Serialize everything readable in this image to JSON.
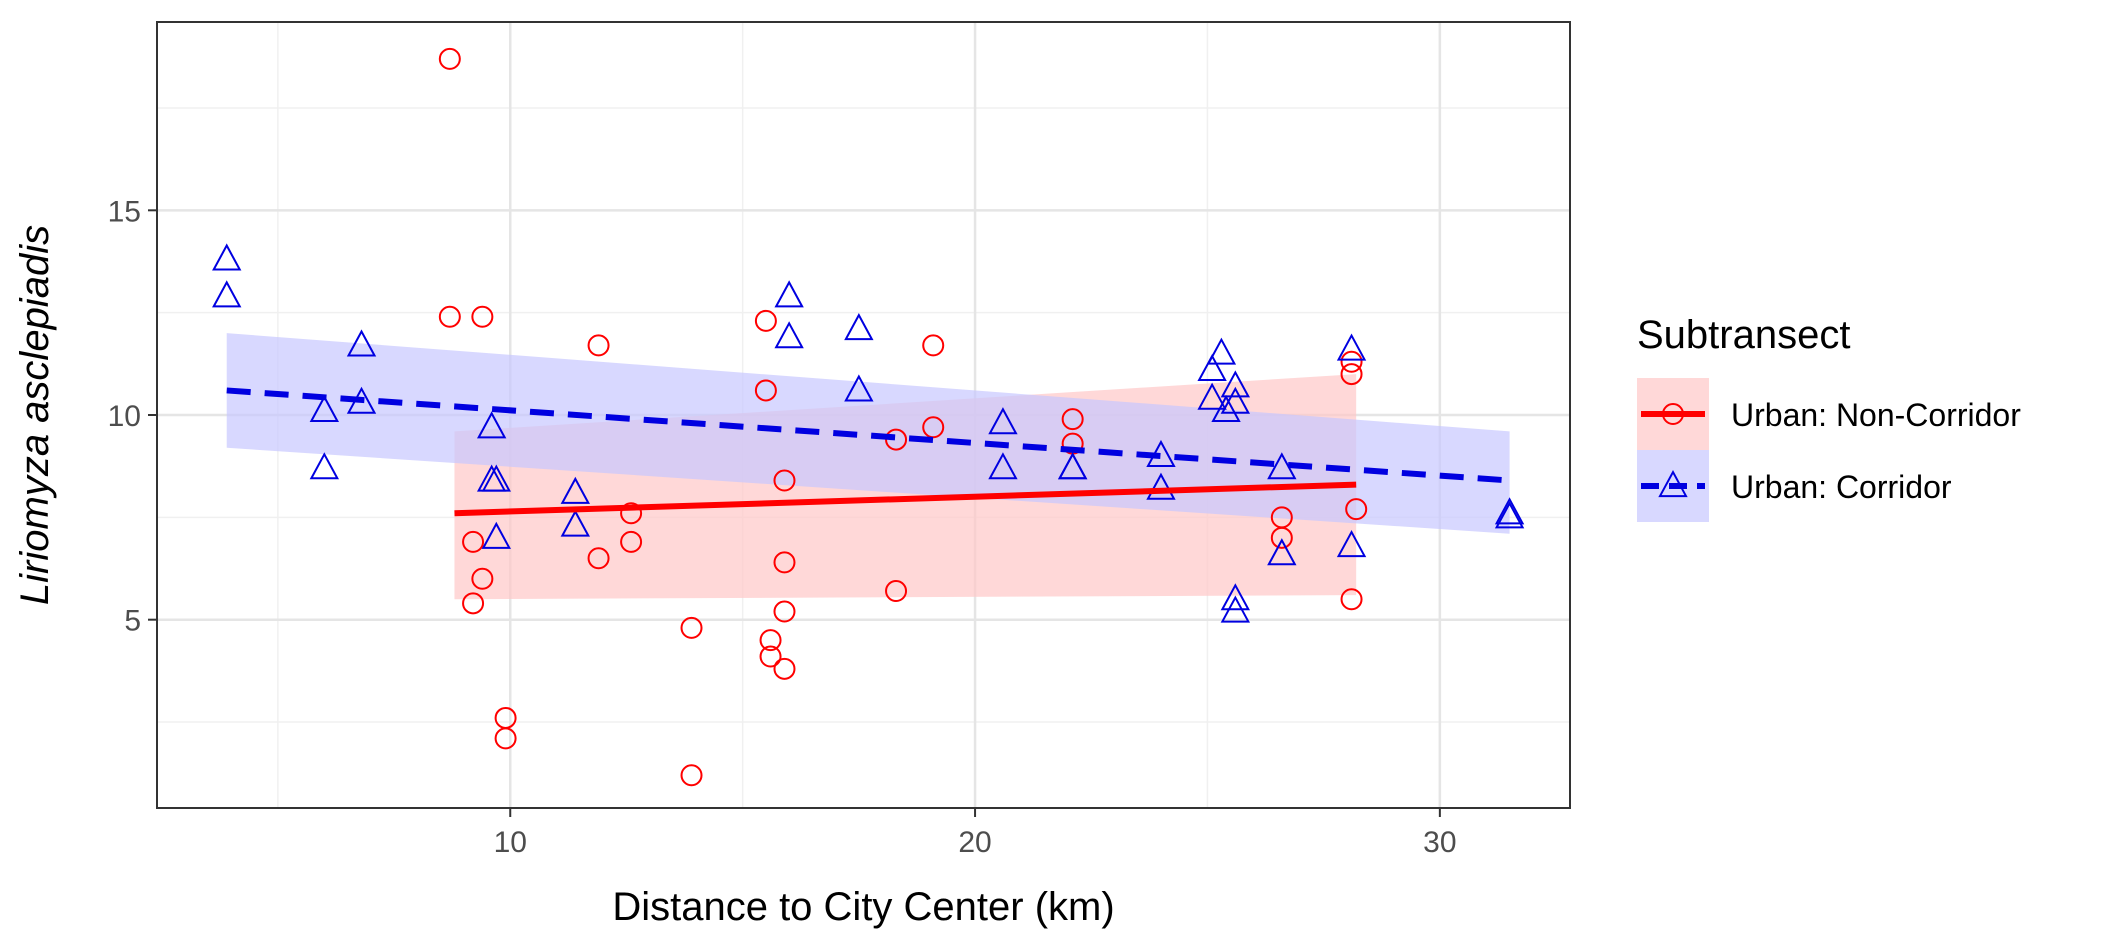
{
  "chart_data": {
    "type": "scatter",
    "xlabel": "Distance to City Center (km)",
    "ylabel": "Liriomyza asclepiadis",
    "xlim": [
      2.4,
      32.8
    ],
    "ylim": [
      0.4,
      19.6
    ],
    "x_ticks": [
      10,
      20,
      30
    ],
    "y_ticks": [
      5,
      10,
      15
    ],
    "grid": true,
    "legend": {
      "title": "Subtransect",
      "placement": "right"
    },
    "series": [
      {
        "name": "Urban: Non-Corridor",
        "marker": "circle",
        "line_style": "solid",
        "color": "#ff0000",
        "band_color": "#ffc8c8",
        "points": [
          [
            8.7,
            18.7
          ],
          [
            8.7,
            12.4
          ],
          [
            9.4,
            12.4
          ],
          [
            9.2,
            6.9
          ],
          [
            9.4,
            6.0
          ],
          [
            9.2,
            5.4
          ],
          [
            9.9,
            2.6
          ],
          [
            9.9,
            2.1
          ],
          [
            11.9,
            11.7
          ],
          [
            11.9,
            6.5
          ],
          [
            12.6,
            7.6
          ],
          [
            12.6,
            6.9
          ],
          [
            13.9,
            4.8
          ],
          [
            13.9,
            1.2
          ],
          [
            15.5,
            12.3
          ],
          [
            15.5,
            10.6
          ],
          [
            15.6,
            4.5
          ],
          [
            15.6,
            4.1
          ],
          [
            15.9,
            8.4
          ],
          [
            15.9,
            6.4
          ],
          [
            15.9,
            5.2
          ],
          [
            15.9,
            3.8
          ],
          [
            18.3,
            9.4
          ],
          [
            18.3,
            5.7
          ],
          [
            19.1,
            11.7
          ],
          [
            19.1,
            9.7
          ],
          [
            22.1,
            9.9
          ],
          [
            22.1,
            9.3
          ],
          [
            26.6,
            7.5
          ],
          [
            26.6,
            7.0
          ],
          [
            28.1,
            11.3
          ],
          [
            28.1,
            11.0
          ],
          [
            28.2,
            7.7
          ],
          [
            28.1,
            5.5
          ]
        ],
        "fit": {
          "x": [
            8.8,
            28.2
          ],
          "y": [
            7.6,
            8.3
          ]
        },
        "band": {
          "x": [
            8.8,
            28.2
          ],
          "lower": [
            5.5,
            5.6
          ],
          "upper": [
            9.6,
            11.0
          ]
        }
      },
      {
        "name": "Urban: Corridor",
        "marker": "triangle",
        "line_style": "dashed",
        "color": "#0000e0",
        "band_color": "#c8c8ff",
        "points": [
          [
            3.9,
            13.8
          ],
          [
            3.9,
            12.9
          ],
          [
            6.0,
            10.1
          ],
          [
            6.0,
            8.7
          ],
          [
            6.8,
            11.7
          ],
          [
            6.8,
            10.3
          ],
          [
            9.6,
            9.7
          ],
          [
            9.6,
            8.4
          ],
          [
            9.7,
            8.4
          ],
          [
            9.7,
            7.0
          ],
          [
            11.4,
            8.1
          ],
          [
            11.4,
            7.3
          ],
          [
            16.0,
            12.9
          ],
          [
            16.0,
            11.9
          ],
          [
            17.5,
            12.1
          ],
          [
            17.5,
            10.6
          ],
          [
            20.6,
            9.8
          ],
          [
            20.6,
            8.7
          ],
          [
            22.1,
            8.7
          ],
          [
            22.1,
            8.7
          ],
          [
            24.0,
            9.0
          ],
          [
            24.0,
            8.2
          ],
          [
            25.3,
            11.5
          ],
          [
            25.1,
            11.1
          ],
          [
            25.1,
            10.4
          ],
          [
            25.4,
            10.1
          ],
          [
            25.6,
            10.7
          ],
          [
            25.6,
            10.3
          ],
          [
            25.6,
            5.5
          ],
          [
            25.6,
            5.2
          ],
          [
            26.6,
            8.7
          ],
          [
            26.6,
            6.6
          ],
          [
            28.1,
            11.6
          ],
          [
            28.1,
            6.8
          ],
          [
            31.5,
            7.6
          ],
          [
            31.5,
            7.5
          ]
        ],
        "fit": {
          "x": [
            3.9,
            31.5
          ],
          "y": [
            10.6,
            8.4
          ]
        },
        "band": {
          "x": [
            3.9,
            31.5
          ],
          "lower": [
            9.2,
            7.1
          ],
          "upper": [
            12.0,
            9.6
          ]
        }
      }
    ]
  }
}
